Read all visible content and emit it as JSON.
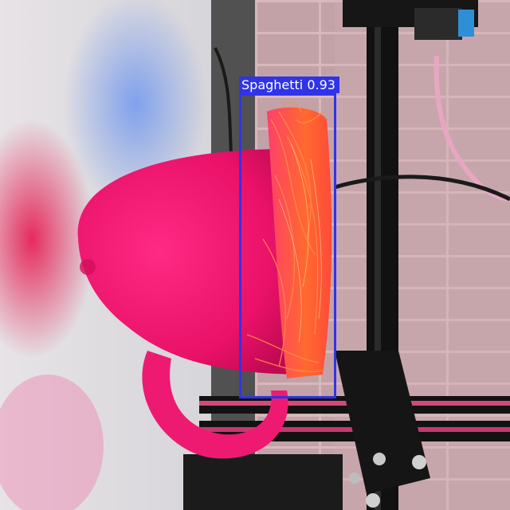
{
  "detection": {
    "class_label": "Spaghetti",
    "confidence": "0.93",
    "box_color": "#2f34e8"
  },
  "scene": {
    "wall_color": "#d9d9dd",
    "floor_color": "#c9a7ab",
    "frame_color": "#121212",
    "print_color": "#f01a6e",
    "spaghetti_color": "#ff5a2a"
  }
}
